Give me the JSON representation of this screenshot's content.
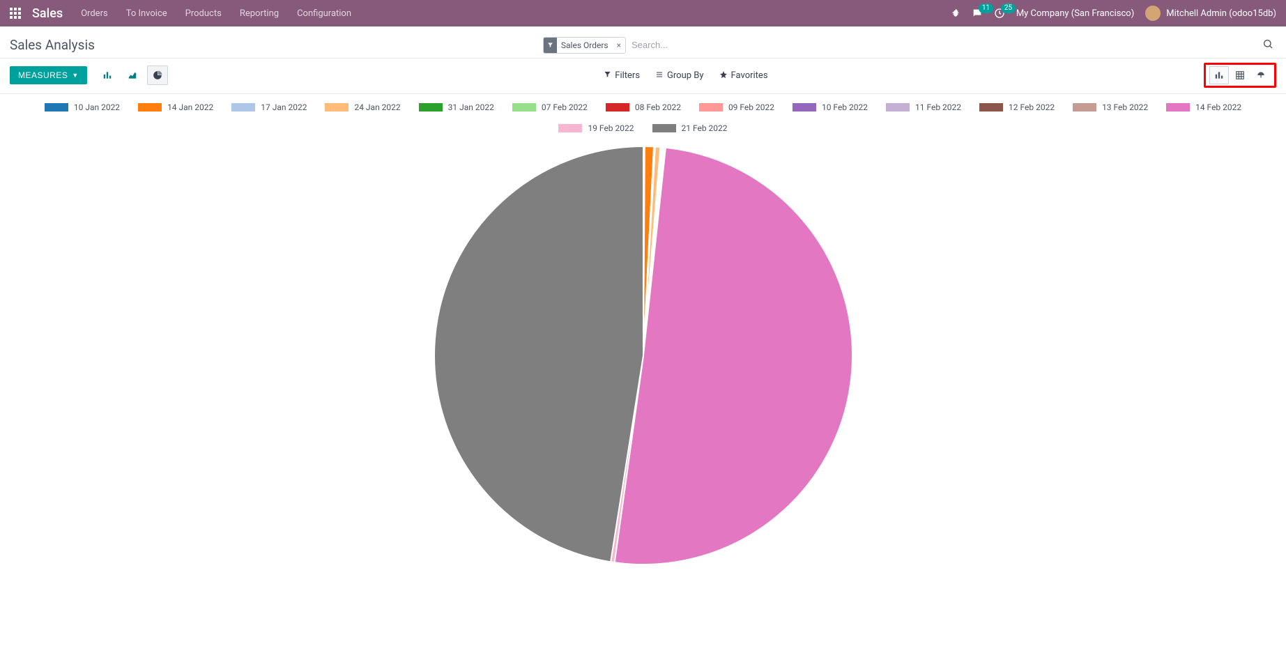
{
  "topnav": {
    "brand": "Sales",
    "links": [
      "Orders",
      "To Invoice",
      "Products",
      "Reporting",
      "Configuration"
    ],
    "messages_badge": "11",
    "activities_badge": "25",
    "company": "My Company (San Francisco)",
    "user": "Mitchell Admin (odoo15db)"
  },
  "page": {
    "title": "Sales Analysis"
  },
  "search": {
    "chip_label": "Sales Orders",
    "placeholder": "Search..."
  },
  "toolbar": {
    "measures_label": "MEASURES",
    "filters_label": "Filters",
    "groupby_label": "Group By",
    "favorites_label": "Favorites"
  },
  "chart": {
    "type": "pie",
    "radius": 300,
    "stroke": "#ffffff",
    "stroke_width": 2,
    "legend_swatch_w": 34,
    "legend_swatch_h": 12,
    "legend_fontsize": 12,
    "legend_color": "#4b5563",
    "series": [
      {
        "label": "10 Jan 2022",
        "color": "#1f77b4",
        "value": 0.1
      },
      {
        "label": "14 Jan 2022",
        "color": "#ff7f0e",
        "value": 0.7
      },
      {
        "label": "17 Jan 2022",
        "color": "#aec7e8",
        "value": 0.1
      },
      {
        "label": "24 Jan 2022",
        "color": "#ffbb78",
        "value": 0.4
      },
      {
        "label": "31 Jan 2022",
        "color": "#2ca02c",
        "value": 0.05
      },
      {
        "label": "07 Feb 2022",
        "color": "#98df8a",
        "value": 0.05
      },
      {
        "label": "08 Feb 2022",
        "color": "#d62728",
        "value": 0.05
      },
      {
        "label": "09 Feb 2022",
        "color": "#ff9896",
        "value": 0.05
      },
      {
        "label": "10 Feb 2022",
        "color": "#9467bd",
        "value": 0.05
      },
      {
        "label": "11 Feb 2022",
        "color": "#c5b0d5",
        "value": 0.05
      },
      {
        "label": "12 Feb 2022",
        "color": "#8c564b",
        "value": 0.05
      },
      {
        "label": "13 Feb 2022",
        "color": "#c49c94",
        "value": 0.05
      },
      {
        "label": "14 Feb 2022",
        "color": "#e377c2",
        "value": 50.5
      },
      {
        "label": "19 Feb 2022",
        "color": "#f7b6d2",
        "value": 0.3
      },
      {
        "label": "21 Feb 2022",
        "color": "#7f7f7f",
        "value": 47.5
      }
    ]
  },
  "highlight": {
    "view_switch_border": "#ff0000"
  }
}
